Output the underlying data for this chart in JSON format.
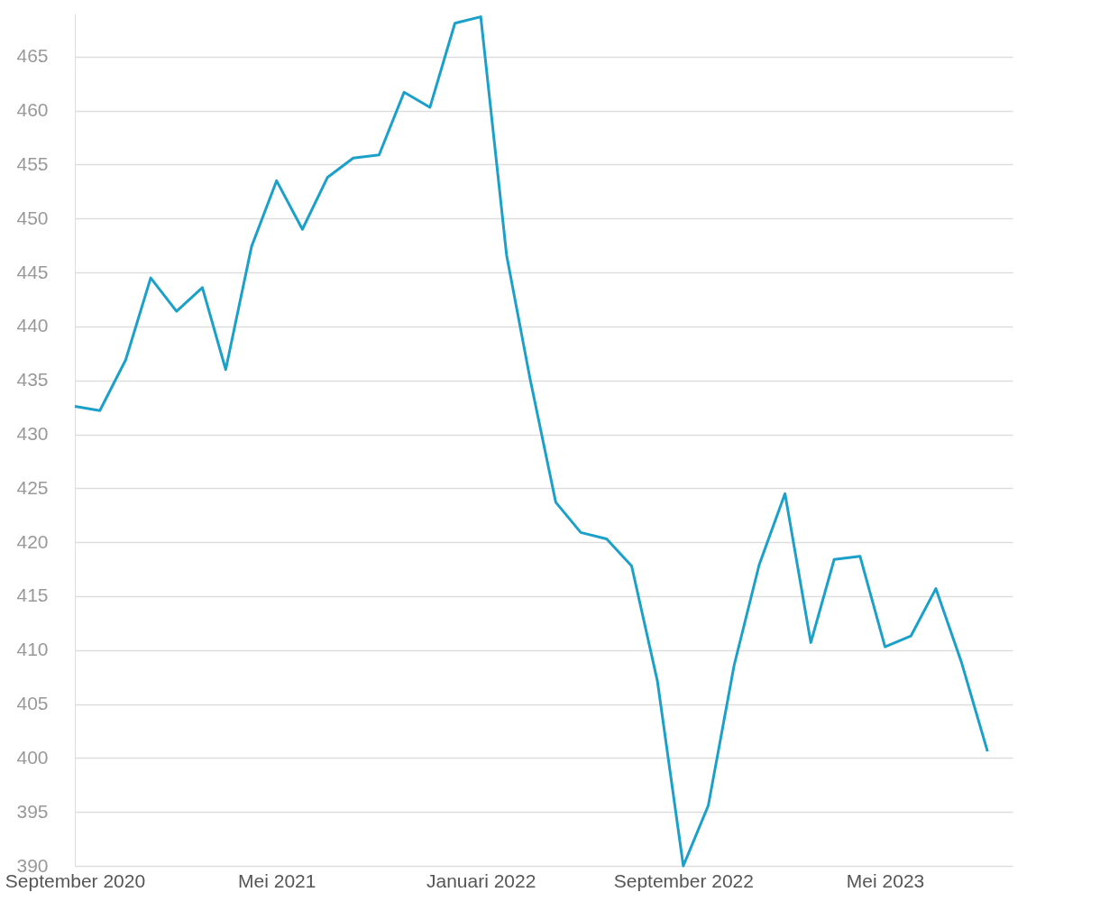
{
  "chart_data": {
    "type": "line",
    "x": [
      "2020-09",
      "2020-10",
      "2020-11",
      "2020-12",
      "2021-01",
      "2021-02",
      "2021-03",
      "2021-04",
      "2021-05",
      "2021-06",
      "2021-07",
      "2021-08",
      "2021-09",
      "2021-10",
      "2021-11",
      "2021-12",
      "2022-01",
      "2022-02",
      "2022-03",
      "2022-04",
      "2022-05",
      "2022-06",
      "2022-07",
      "2022-08",
      "2022-09",
      "2022-10",
      "2022-11",
      "2022-12",
      "2023-01",
      "2023-02",
      "2023-03",
      "2023-04",
      "2023-05",
      "2023-06",
      "2023-07",
      "2023-08",
      "2023-09"
    ],
    "series": [
      {
        "color": "#1ba1c9",
        "values": [
          432.6,
          432.2,
          436.9,
          444.5,
          441.4,
          443.6,
          436.0,
          447.4,
          453.5,
          449.0,
          453.8,
          455.6,
          455.9,
          461.7,
          460.3,
          468.1,
          468.7,
          446.6,
          435.2,
          423.7,
          420.9,
          420.3,
          417.8,
          407.1,
          390.0,
          395.6,
          408.6,
          417.9,
          424.5,
          410.7,
          418.4,
          418.7,
          410.3,
          411.3,
          415.7,
          408.8,
          400.6
        ]
      }
    ],
    "xlim": [
      "2020-09",
      "2023-10"
    ],
    "xticks": [
      {
        "value": "2020-09",
        "label": "September 2020"
      },
      {
        "value": "2021-05",
        "label": "Mei 2021"
      },
      {
        "value": "2022-01",
        "label": "Januari 2022"
      },
      {
        "value": "2022-09",
        "label": "September 2022"
      },
      {
        "value": "2023-05",
        "label": "Mei 2023"
      }
    ],
    "ylim": [
      390,
      469
    ],
    "yticks": [
      390,
      395,
      400,
      405,
      410,
      415,
      420,
      425,
      430,
      435,
      440,
      445,
      450,
      455,
      460,
      465
    ],
    "grid": "y",
    "marker": "none",
    "line_style": "solid"
  }
}
